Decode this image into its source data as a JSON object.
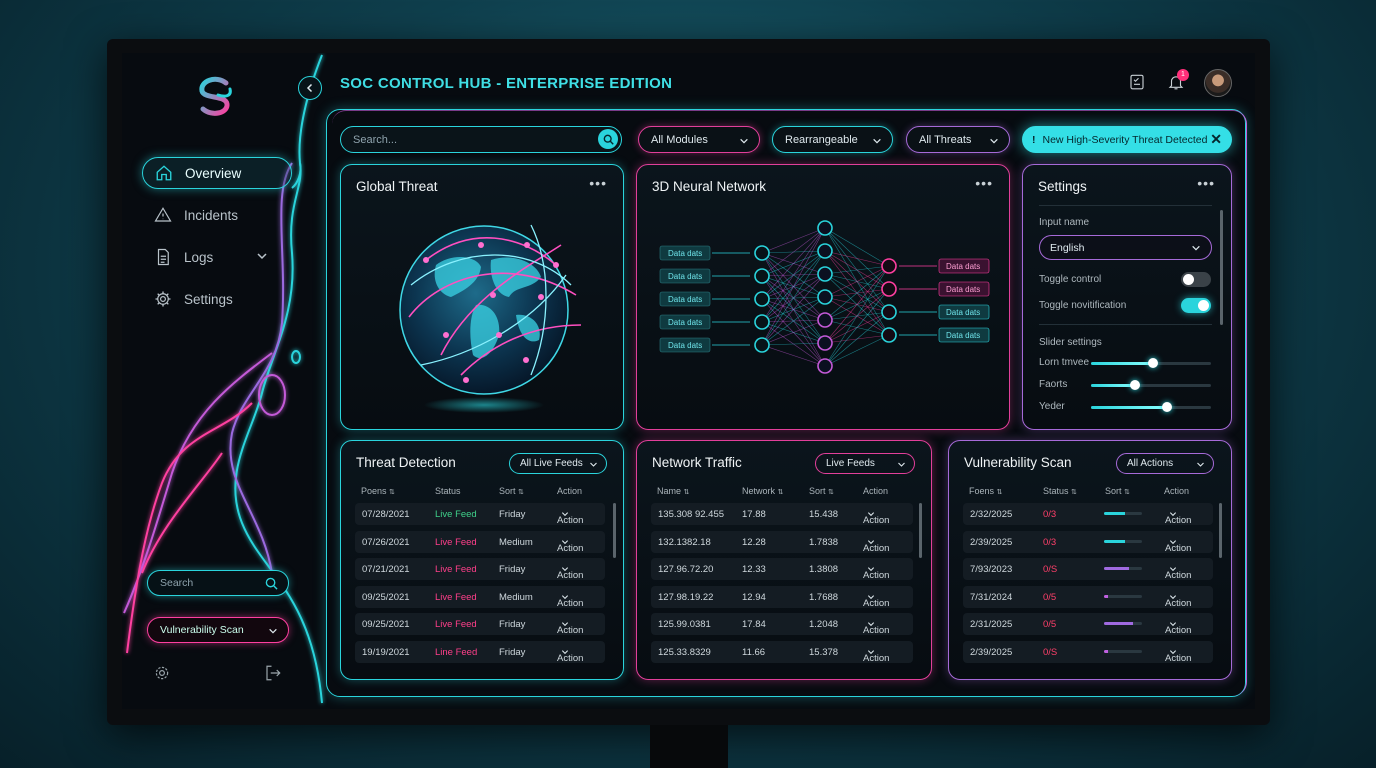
{
  "app": {
    "title_part1": "SOC CONTROL HUB - ",
    "title_part2": "ENTERPRISE EDITION",
    "notification_count": "1"
  },
  "sidebar": {
    "items": [
      {
        "label": "Overview",
        "icon": "home-icon",
        "active": true
      },
      {
        "label": "Incidents",
        "icon": "warning-icon"
      },
      {
        "label": "Logs",
        "icon": "document-icon",
        "expandable": true
      },
      {
        "label": "Settings",
        "icon": "gear-icon"
      }
    ],
    "search_placeholder": "Search",
    "module_select": "Vulnerability Scan"
  },
  "toolbar": {
    "search_placeholder": "Search...",
    "modules_label": "All Modules",
    "layout_label": "Rearrangeable",
    "threats_label": "All Threats",
    "alert_text": "New High-Severity Threat Detected",
    "alert_icon": "!"
  },
  "global_threat": {
    "title": "Global Threat"
  },
  "neural": {
    "title": "3D Neural Network",
    "input_labels": [
      "Data dats",
      "Data dats",
      "Data dats",
      "Data dats",
      "Data dats"
    ],
    "output_labels": [
      "Data dats",
      "Data dats",
      "Data dats",
      "Data dats"
    ]
  },
  "settings": {
    "title": "Settings",
    "input_name_label": "Input name",
    "language_value": "English",
    "toggle_control_label": "Toggle control",
    "toggle_control_on": false,
    "toggle_notification_label": "Toggle novitification",
    "toggle_notification_on": true,
    "slider_section_label": "Slider settings",
    "sliders": [
      {
        "label": "Lorn tmvee",
        "value": 0.52
      },
      {
        "label": "Faorts",
        "value": 0.37
      },
      {
        "label": "Yeder",
        "value": 0.63
      }
    ]
  },
  "threat_detection": {
    "title": "Threat Detection",
    "filter": "All Live Feeds",
    "headers": [
      "Poens",
      "Status",
      "Sort",
      "Action"
    ],
    "rows": [
      {
        "date": "07/28/2021",
        "status": "Live Feed",
        "status_color": "#3fd08a",
        "sort": "Friday",
        "action": "Action"
      },
      {
        "date": "07/26/2021",
        "status": "Live Feed",
        "status_color": "#ff3f8a",
        "sort": "Medium",
        "action": "Action"
      },
      {
        "date": "07/21/2021",
        "status": "Live Feed",
        "status_color": "#ff3f8a",
        "sort": "Friday",
        "action": "Action"
      },
      {
        "date": "09/25/2021",
        "status": "Live Feed",
        "status_color": "#ff3f8a",
        "sort": "Medium",
        "action": "Action"
      },
      {
        "date": "09/25/2021",
        "status": "Live Feed",
        "status_color": "#ff3f8a",
        "sort": "Friday",
        "action": "Action"
      },
      {
        "date": "19/19/2021",
        "status": "Line Feed",
        "status_color": "#ff3f8a",
        "sort": "Friday",
        "action": "Action"
      }
    ]
  },
  "network_traffic": {
    "title": "Network Traffic",
    "filter": "Live Feeds",
    "headers": [
      "Name",
      "Network",
      "Sort",
      "Action"
    ],
    "rows": [
      {
        "name": "135.308 92.455",
        "network": "17.88",
        "sort": "15.438",
        "action": "Action"
      },
      {
        "name": "132.1382.18",
        "network": "12.28",
        "sort": "1.7838",
        "action": "Action"
      },
      {
        "name": "127.96.72.20",
        "network": "12.33",
        "sort": "1.3808",
        "action": "Action"
      },
      {
        "name": "127.98.19.22",
        "network": "12.94",
        "sort": "1.7688",
        "action": "Action"
      },
      {
        "name": "125.99.0381",
        "network": "17.84",
        "sort": "1.2048",
        "action": "Action"
      },
      {
        "name": "125.33.8329",
        "network": "11.66",
        "sort": "15.378",
        "action": "Action"
      }
    ]
  },
  "vulnerability_scan": {
    "title": "Vulnerability Scan",
    "filter": "All Actions",
    "headers": [
      "Foens",
      "Status",
      "Sort",
      "Action"
    ],
    "rows": [
      {
        "date": "2/32/2025",
        "status": "0/3",
        "progress": 0.55,
        "bar_color": "#2ad4dc",
        "action": "Action"
      },
      {
        "date": "2/39/2025",
        "status": "0/3",
        "progress": 0.55,
        "bar_color": "#2ad4dc",
        "action": "Action"
      },
      {
        "date": "7/93/2023",
        "status": "0/S",
        "progress": 0.65,
        "bar_color": "#a06ae0",
        "action": "Action"
      },
      {
        "date": "7/31/2024",
        "status": "0/5",
        "progress": 0.1,
        "bar_color": "#c060e0",
        "action": "Action"
      },
      {
        "date": "2/31/2025",
        "status": "0/5",
        "progress": 0.75,
        "bar_color": "#a06ae0",
        "action": "Action"
      },
      {
        "date": "2/39/2025",
        "status": "0/S",
        "progress": 0.1,
        "bar_color": "#c060e0",
        "action": "Action"
      }
    ]
  }
}
